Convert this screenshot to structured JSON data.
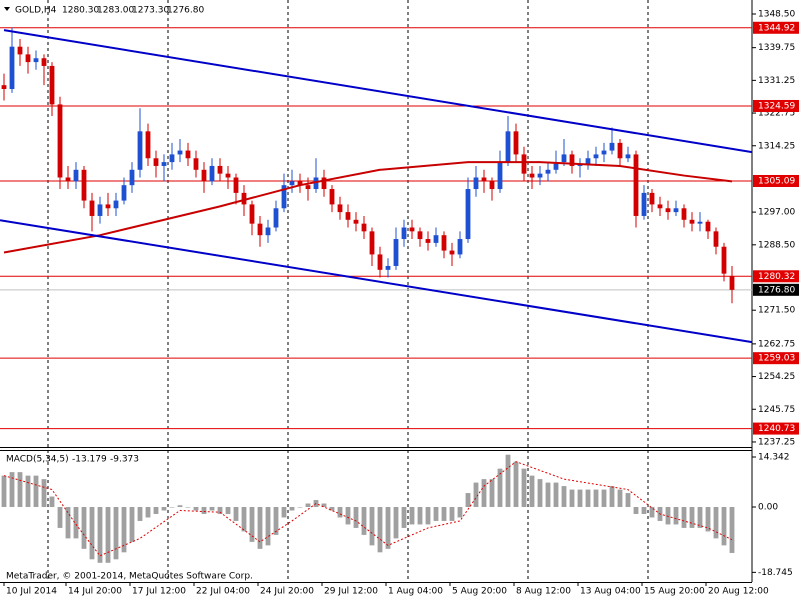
{
  "chart_data": {
    "type": "candlestick",
    "symbol": "GOLD,H4",
    "quote": [
      {
        "value": 1280.3,
        "label": "1280.30"
      },
      {
        "value": 1283,
        "label": "1283.00"
      },
      {
        "value": 1273.3,
        "label": "1273.30"
      },
      {
        "value": 1276.8,
        "label": "1276.80"
      }
    ],
    "up_color": "#1e50d2",
    "down_color": "#d20000",
    "candles": [
      [
        1330,
        1333,
        1326,
        1329
      ],
      [
        1329,
        1345,
        1328,
        1340
      ],
      [
        1340,
        1342,
        1335,
        1338
      ],
      [
        1338,
        1340,
        1333,
        1336
      ],
      [
        1336,
        1339,
        1334,
        1337
      ],
      [
        1337,
        1338,
        1330,
        1335
      ],
      [
        1335,
        1336,
        1322,
        1325
      ],
      [
        1325,
        1327,
        1303,
        1306
      ],
      [
        1306,
        1309,
        1303,
        1305
      ],
      [
        1305,
        1310,
        1303,
        1308
      ],
      [
        1308,
        1309,
        1298,
        1300
      ],
      [
        1300,
        1302,
        1292,
        1296
      ],
      [
        1296,
        1301,
        1294,
        1299
      ],
      [
        1299,
        1302,
        1296,
        1298
      ],
      [
        1298,
        1302,
        1296,
        1300
      ],
      [
        1300,
        1306,
        1299,
        1304
      ],
      [
        1304,
        1310,
        1302,
        1308
      ],
      [
        1308,
        1324,
        1306,
        1318
      ],
      [
        1318,
        1320,
        1309,
        1311
      ],
      [
        1311,
        1313,
        1306,
        1309
      ],
      [
        1309,
        1312,
        1305,
        1310
      ],
      [
        1310,
        1315,
        1308,
        1312
      ],
      [
        1312,
        1316,
        1310,
        1313
      ],
      [
        1313,
        1315,
        1309,
        1311
      ],
      [
        1311,
        1313,
        1306,
        1308
      ],
      [
        1308,
        1310,
        1302,
        1305
      ],
      [
        1305,
        1311,
        1304,
        1309
      ],
      [
        1309,
        1311,
        1305,
        1307
      ],
      [
        1307,
        1309,
        1303,
        1306
      ],
      [
        1306,
        1307,
        1299,
        1302
      ],
      [
        1302,
        1304,
        1296,
        1299
      ],
      [
        1299,
        1300,
        1291,
        1294
      ],
      [
        1294,
        1296,
        1288,
        1291
      ],
      [
        1291,
        1295,
        1289,
        1293
      ],
      [
        1293,
        1300,
        1292,
        1298
      ],
      [
        1298,
        1307,
        1297,
        1304
      ],
      [
        1304,
        1308,
        1302,
        1305
      ],
      [
        1305,
        1307,
        1302,
        1304
      ],
      [
        1304,
        1306,
        1300,
        1303
      ],
      [
        1303,
        1311,
        1302,
        1306
      ],
      [
        1306,
        1308,
        1301,
        1303
      ],
      [
        1303,
        1304,
        1297,
        1299
      ],
      [
        1299,
        1301,
        1295,
        1297
      ],
      [
        1297,
        1299,
        1293,
        1295
      ],
      [
        1295,
        1297,
        1292,
        1294
      ],
      [
        1294,
        1296,
        1290,
        1292
      ],
      [
        1292,
        1293,
        1283,
        1286
      ],
      [
        1286,
        1288,
        1280,
        1282
      ],
      [
        1282,
        1285,
        1280,
        1283
      ],
      [
        1283,
        1293,
        1282,
        1290
      ],
      [
        1290,
        1295,
        1288,
        1293
      ],
      [
        1293,
        1295,
        1290,
        1292
      ],
      [
        1292,
        1293,
        1288,
        1290
      ],
      [
        1290,
        1292,
        1287,
        1289
      ],
      [
        1289,
        1293,
        1288,
        1291
      ],
      [
        1291,
        1292,
        1285,
        1287
      ],
      [
        1287,
        1289,
        1283,
        1286
      ],
      [
        1286,
        1292,
        1285,
        1290
      ],
      [
        1290,
        1306,
        1289,
        1303
      ],
      [
        1303,
        1309,
        1301,
        1306
      ],
      [
        1306,
        1308,
        1302,
        1305
      ],
      [
        1305,
        1306,
        1300,
        1303
      ],
      [
        1303,
        1313,
        1302,
        1310
      ],
      [
        1310,
        1322,
        1309,
        1318
      ],
      [
        1318,
        1320,
        1310,
        1312
      ],
      [
        1312,
        1314,
        1305,
        1307
      ],
      [
        1307,
        1309,
        1303,
        1306
      ],
      [
        1306,
        1309,
        1304,
        1307
      ],
      [
        1307,
        1310,
        1305,
        1308
      ],
      [
        1308,
        1313,
        1307,
        1310
      ],
      [
        1310,
        1316,
        1309,
        1312
      ],
      [
        1312,
        1313,
        1307,
        1309
      ],
      [
        1309,
        1311,
        1306,
        1309.5
      ],
      [
        1309.5,
        1313,
        1308,
        1311
      ],
      [
        1311,
        1314,
        1309,
        1312
      ],
      [
        1312,
        1315,
        1310,
        1313
      ],
      [
        1313,
        1319,
        1312,
        1315
      ],
      [
        1315,
        1316,
        1309,
        1311
      ],
      [
        1311,
        1314,
        1310,
        1312
      ],
      [
        1312,
        1313,
        1293,
        1296
      ],
      [
        1296,
        1304,
        1295,
        1302
      ],
      [
        1302,
        1303,
        1297,
        1299
      ],
      [
        1299,
        1301,
        1296,
        1298
      ],
      [
        1298,
        1300,
        1295,
        1297
      ],
      [
        1297,
        1300,
        1296,
        1298
      ],
      [
        1298,
        1299,
        1293,
        1295
      ],
      [
        1295,
        1297,
        1292,
        1294
      ],
      [
        1294,
        1297,
        1292,
        1294.5
      ],
      [
        1294.5,
        1295,
        1290,
        1292
      ],
      [
        1292,
        1293,
        1286,
        1288
      ],
      [
        1288,
        1289,
        1279,
        1281
      ],
      [
        1280.3,
        1283,
        1273.3,
        1276.8
      ]
    ],
    "xlim": [
      -0.5,
      93.5
    ],
    "xticks": [
      {
        "value": 0,
        "label": "10 Jul 2014"
      },
      {
        "value": 7.75,
        "label": "14 Jul 20:00"
      },
      {
        "value": 15.75,
        "label": "17 Jul 12:00"
      },
      {
        "value": 23.75,
        "label": "22 Jul 04:00"
      },
      {
        "value": 31.75,
        "label": "24 Jul 20:00"
      },
      {
        "value": 39.75,
        "label": "29 Jul 12:00"
      },
      {
        "value": 47.75,
        "label": "1 Aug 04:00"
      },
      {
        "value": 55.75,
        "label": "5 Aug 20:00"
      },
      {
        "value": 63.75,
        "label": "8 Aug 12:00"
      },
      {
        "value": 71.75,
        "label": "13 Aug 04:00"
      },
      {
        "value": 79.75,
        "label": "15 Aug 20:00"
      },
      {
        "value": 87.75,
        "label": "20 Aug 12:00"
      }
    ],
    "ylim": [
      1235.94,
      1352.14
    ],
    "yticks": [
      {
        "value": 1348.5,
        "label": "1348.50"
      },
      {
        "value": 1339.75,
        "label": "1339.75"
      },
      {
        "value": 1331.25,
        "label": "1331.25"
      },
      {
        "value": 1322.75,
        "label": "1322.75"
      },
      {
        "value": 1314.25,
        "label": "1314.25"
      },
      {
        "value": 1297,
        "label": "1297.00"
      },
      {
        "value": 1288.5,
        "label": "1288.50"
      },
      {
        "value": 1271.5,
        "label": "1271.50"
      },
      {
        "value": 1262.75,
        "label": "1262.75"
      },
      {
        "value": 1254.25,
        "label": "1254.25"
      },
      {
        "value": 1245.75,
        "label": "1245.75"
      },
      {
        "value": 1237.25,
        "label": "1237.25"
      }
    ],
    "levels": [
      {
        "value": 1344.92,
        "label": "1344.92"
      },
      {
        "value": 1324.59,
        "label": "1324.59"
      },
      {
        "value": 1305.09,
        "label": "1305.09"
      },
      {
        "value": 1280.32,
        "label": "1280.32"
      },
      {
        "value": 1259.03,
        "label": "1259.03"
      },
      {
        "value": 1240.73,
        "label": "1240.73"
      }
    ],
    "level_color": "#e00000",
    "current_price": {
      "value": 1276.8,
      "label": "1276.80"
    },
    "ma": {
      "color": "#c80000",
      "x": [
        0,
        12,
        27,
        37,
        47,
        58,
        67,
        77,
        85,
        91
      ],
      "values": [
        1286.5,
        1291,
        1298.5,
        1304,
        1308,
        1310,
        1310,
        1309,
        1306.5,
        1305
      ]
    },
    "trend_lines": [
      {
        "color": "#0000c8",
        "x": [
          0,
          93.5
        ],
        "values": [
          1344.3,
          1312.6
        ]
      },
      {
        "color": "#0000c8",
        "x": [
          -0.5,
          93.5
        ],
        "values": [
          1294.9,
          1263.2
        ]
      }
    ],
    "macd": {
      "name": "MACD(5,34,5)",
      "color": "#a0a0a0",
      "values": [
        9,
        10,
        10,
        9,
        9,
        8,
        3,
        -6,
        -9,
        -9,
        -12,
        -15,
        -16,
        -16,
        -15,
        -13,
        -10,
        -4,
        -3,
        -2,
        -1,
        0,
        0.5,
        0,
        -1,
        -2,
        -1,
        -2,
        -2,
        -4,
        -7,
        -10,
        -12,
        -11,
        -8,
        -3,
        -1,
        0,
        1,
        2,
        1,
        -1,
        -3,
        -5,
        -6,
        -8,
        -11,
        -13,
        -12,
        -9,
        -6,
        -5,
        -5,
        -5,
        -4,
        -4,
        -4,
        -3,
        4,
        7,
        8,
        8,
        11,
        15,
        13,
        11,
        9,
        8,
        7,
        7,
        6,
        5,
        5,
        5,
        5,
        5,
        6,
        5,
        4,
        -2,
        -2,
        -3,
        -4,
        -5,
        -5,
        -6,
        -6,
        -6,
        -7,
        -9,
        -11,
        -13.179
      ],
      "signal": {
        "color": "#e00000",
        "x": [
          0,
          6,
          9,
          12,
          17,
          22,
          27,
          32,
          36,
          39,
          44,
          48,
          53,
          57,
          60,
          64,
          70,
          78,
          82,
          88,
          91
        ],
        "values": [
          9,
          5,
          -5,
          -14,
          -9,
          -1,
          -1.5,
          -10,
          -4,
          1,
          -4,
          -11,
          -6,
          -4,
          6,
          13,
          8,
          5,
          -2,
          -6,
          -9.373
        ]
      },
      "ylim": [
        -21.51,
        16.35
      ],
      "yticks": [
        14.342,
        {
          "value": 0,
          "label": "0.00"
        },
        -18.745
      ]
    },
    "copyright": "MetaTrader, © 2001-2014, MetaQuotes Software Corp."
  }
}
